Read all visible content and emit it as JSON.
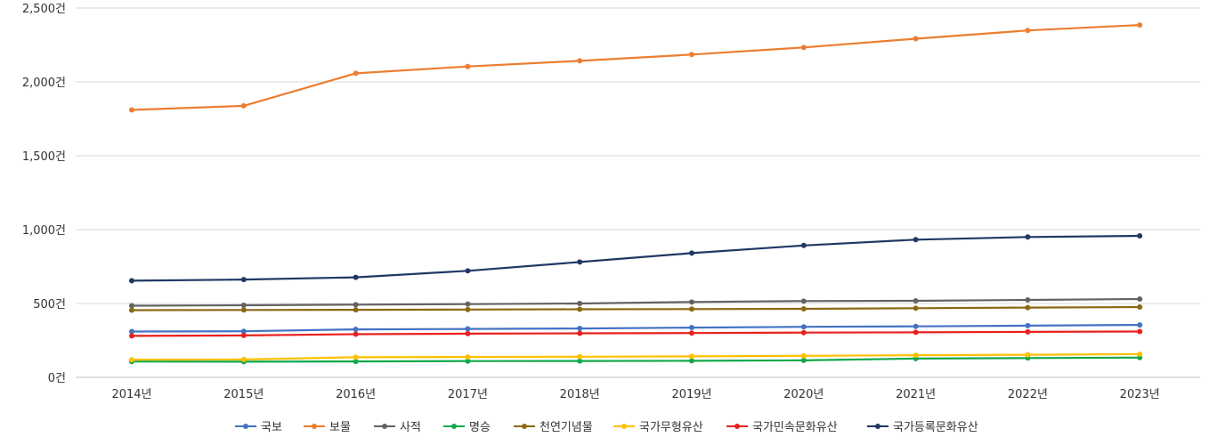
{
  "chart_data": {
    "type": "line",
    "title": "",
    "xlabel": "",
    "ylabel": "",
    "categories": [
      "2014년",
      "2015년",
      "2016년",
      "2017년",
      "2018년",
      "2019년",
      "2020년",
      "2021년",
      "2022년",
      "2023년"
    ],
    "ylim": [
      0,
      2500
    ],
    "y_ticks": [
      0,
      500,
      1000,
      1500,
      2000,
      2500
    ],
    "y_tick_labels": [
      "0건",
      "500건",
      "1,000건",
      "1,500건",
      "2,000건",
      "2,500건"
    ],
    "grid": "horizontal",
    "legend": "bottom",
    "series": [
      {
        "name": "국보",
        "color": "#4472c4",
        "values": [
          310,
          312,
          325,
          328,
          331,
          337,
          342,
          345,
          350,
          355
        ]
      },
      {
        "name": "보물",
        "color": "#ed7d31",
        "values": [
          1810,
          1838,
          2058,
          2104,
          2142,
          2185,
          2233,
          2292,
          2348,
          2385
        ]
      },
      {
        "name": "사적",
        "color": "#636363",
        "values": [
          485,
          488,
          492,
          496,
          500,
          510,
          516,
          518,
          524,
          530
        ]
      },
      {
        "name": "명승",
        "color": "#13a84b",
        "values": [
          107,
          106,
          108,
          110,
          111,
          112,
          115,
          127,
          131,
          134
        ]
      },
      {
        "name": "천연기념물",
        "color": "#8b6914",
        "values": [
          455,
          456,
          457,
          459,
          461,
          462,
          464,
          468,
          472,
          476
        ]
      },
      {
        "name": "국가무형유산",
        "color": "#ffc000",
        "values": [
          119,
          121,
          136,
          138,
          140,
          142,
          146,
          150,
          153,
          157
        ]
      },
      {
        "name": "국가민속문화유산",
        "color": "#e8211e",
        "values": [
          281,
          284,
          292,
          296,
          298,
          300,
          303,
          305,
          308,
          310
        ]
      },
      {
        "name": "국가등록문화유산",
        "color": "#203864",
        "values": [
          654,
          662,
          677,
          721,
          781,
          841,
          893,
          932,
          950,
          958
        ]
      }
    ]
  }
}
